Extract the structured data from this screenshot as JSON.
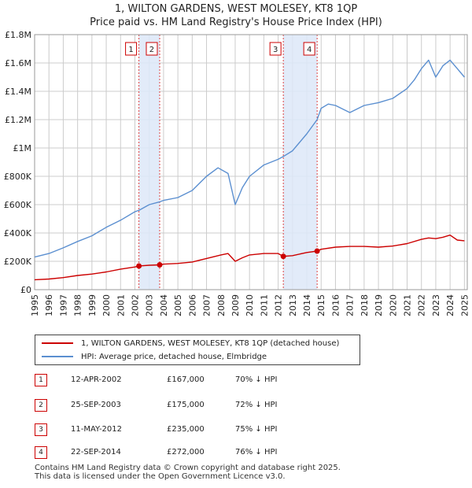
{
  "title_line1": "1, WILTON GARDENS, WEST MOLESEY, KT8 1QP",
  "title_line2": "Price paid vs. HM Land Registry's House Price Index (HPI)",
  "legend": {
    "property_label": "1, WILTON GARDENS, WEST MOLESEY, KT8 1QP (detached house)",
    "hpi_label": "HPI: Average price, detached house, Elmbridge"
  },
  "colors": {
    "property": "#cc0000",
    "hpi": "#5b8fd0",
    "shade": "#dde8f8",
    "grid": "#cccccc"
  },
  "transactions": [
    {
      "num": "1",
      "date": "12-APR-2002",
      "price": "£167,000",
      "pct": "70% ↓ HPI"
    },
    {
      "num": "2",
      "date": "25-SEP-2003",
      "price": "£175,000",
      "pct": "72% ↓ HPI"
    },
    {
      "num": "3",
      "date": "11-MAY-2012",
      "price": "£235,000",
      "pct": "75% ↓ HPI"
    },
    {
      "num": "4",
      "date": "22-SEP-2014",
      "price": "£272,000",
      "pct": "76% ↓ HPI"
    }
  ],
  "footer_line1": "Contains HM Land Registry data © Crown copyright and database right 2025.",
  "footer_line2": "This data is licensed under the Open Government Licence v3.0.",
  "chart_data": {
    "type": "line",
    "title": "1, WILTON GARDENS, WEST MOLESEY, KT8 1QP",
    "subtitle": "Price paid vs. HM Land Registry's House Price Index (HPI)",
    "xlabel": "",
    "ylabel": "",
    "xlim": [
      1995,
      2025.2
    ],
    "ylim": [
      0,
      1800000
    ],
    "x_ticks": [
      1995,
      1996,
      1997,
      1998,
      1999,
      2000,
      2001,
      2002,
      2003,
      2004,
      2005,
      2006,
      2007,
      2008,
      2009,
      2010,
      2011,
      2012,
      2013,
      2014,
      2015,
      2016,
      2017,
      2018,
      2019,
      2020,
      2021,
      2022,
      2023,
      2024,
      2025
    ],
    "y_ticks": [
      0,
      200000,
      400000,
      600000,
      800000,
      1000000,
      1200000,
      1400000,
      1600000,
      1800000
    ],
    "y_tick_labels": [
      "£0",
      "£200K",
      "£400K",
      "£600K",
      "£800K",
      "£1M",
      "£1.2M",
      "£1.4M",
      "£1.6M",
      "£1.8M"
    ],
    "grid": true,
    "legend_position": "bottom",
    "shaded_ranges": [
      [
        2002.28,
        2003.73
      ],
      [
        2012.36,
        2014.72
      ]
    ],
    "markers": [
      {
        "label": "1",
        "x": 2002.28,
        "y": 167000
      },
      {
        "label": "2",
        "x": 2003.73,
        "y": 175000
      },
      {
        "label": "3",
        "x": 2012.36,
        "y": 235000
      },
      {
        "label": "4",
        "x": 2014.72,
        "y": 272000
      }
    ],
    "series": [
      {
        "name": "1, WILTON GARDENS, WEST MOLESEY, KT8 1QP (detached house)",
        "x": [
          1995,
          1996,
          1997,
          1998,
          1999,
          2000,
          2001,
          2002,
          2002.28,
          2003,
          2003.73,
          2004,
          2005,
          2006,
          2007,
          2008,
          2008.5,
          2009,
          2009.5,
          2010,
          2011,
          2012,
          2012.36,
          2013,
          2014,
          2014.72,
          2015,
          2016,
          2017,
          2018,
          2019,
          2020,
          2021,
          2022,
          2022.5,
          2023,
          2023.5,
          2024,
          2024.5,
          2025
        ],
        "values": [
          70000,
          75000,
          85000,
          100000,
          110000,
          125000,
          145000,
          160000,
          167000,
          172000,
          175000,
          180000,
          185000,
          195000,
          220000,
          245000,
          255000,
          200000,
          225000,
          245000,
          255000,
          255000,
          235000,
          240000,
          262000,
          272000,
          285000,
          300000,
          305000,
          305000,
          300000,
          308000,
          325000,
          355000,
          365000,
          360000,
          370000,
          385000,
          350000,
          345000
        ]
      },
      {
        "name": "HPI: Average price, detached house, Elmbridge",
        "x": [
          1995,
          1996,
          1997,
          1998,
          1999,
          2000,
          2001,
          2002,
          2002.28,
          2003,
          2003.73,
          2004,
          2005,
          2006,
          2007,
          2007.8,
          2008.5,
          2009,
          2009.5,
          2010,
          2011,
          2012,
          2012.36,
          2013,
          2014,
          2014.72,
          2015,
          2015.5,
          2016,
          2017,
          2018,
          2019,
          2020,
          2021,
          2021.5,
          2022,
          2022.5,
          2023,
          2023.5,
          2024,
          2024.5,
          2025
        ],
        "values": [
          230000,
          255000,
          295000,
          340000,
          380000,
          440000,
          490000,
          550000,
          560000,
          600000,
          620000,
          630000,
          650000,
          700000,
          800000,
          860000,
          820000,
          600000,
          720000,
          800000,
          880000,
          920000,
          940000,
          980000,
          1100000,
          1200000,
          1280000,
          1310000,
          1300000,
          1250000,
          1300000,
          1320000,
          1350000,
          1420000,
          1480000,
          1560000,
          1620000,
          1500000,
          1580000,
          1620000,
          1560000,
          1500000
        ]
      }
    ]
  }
}
